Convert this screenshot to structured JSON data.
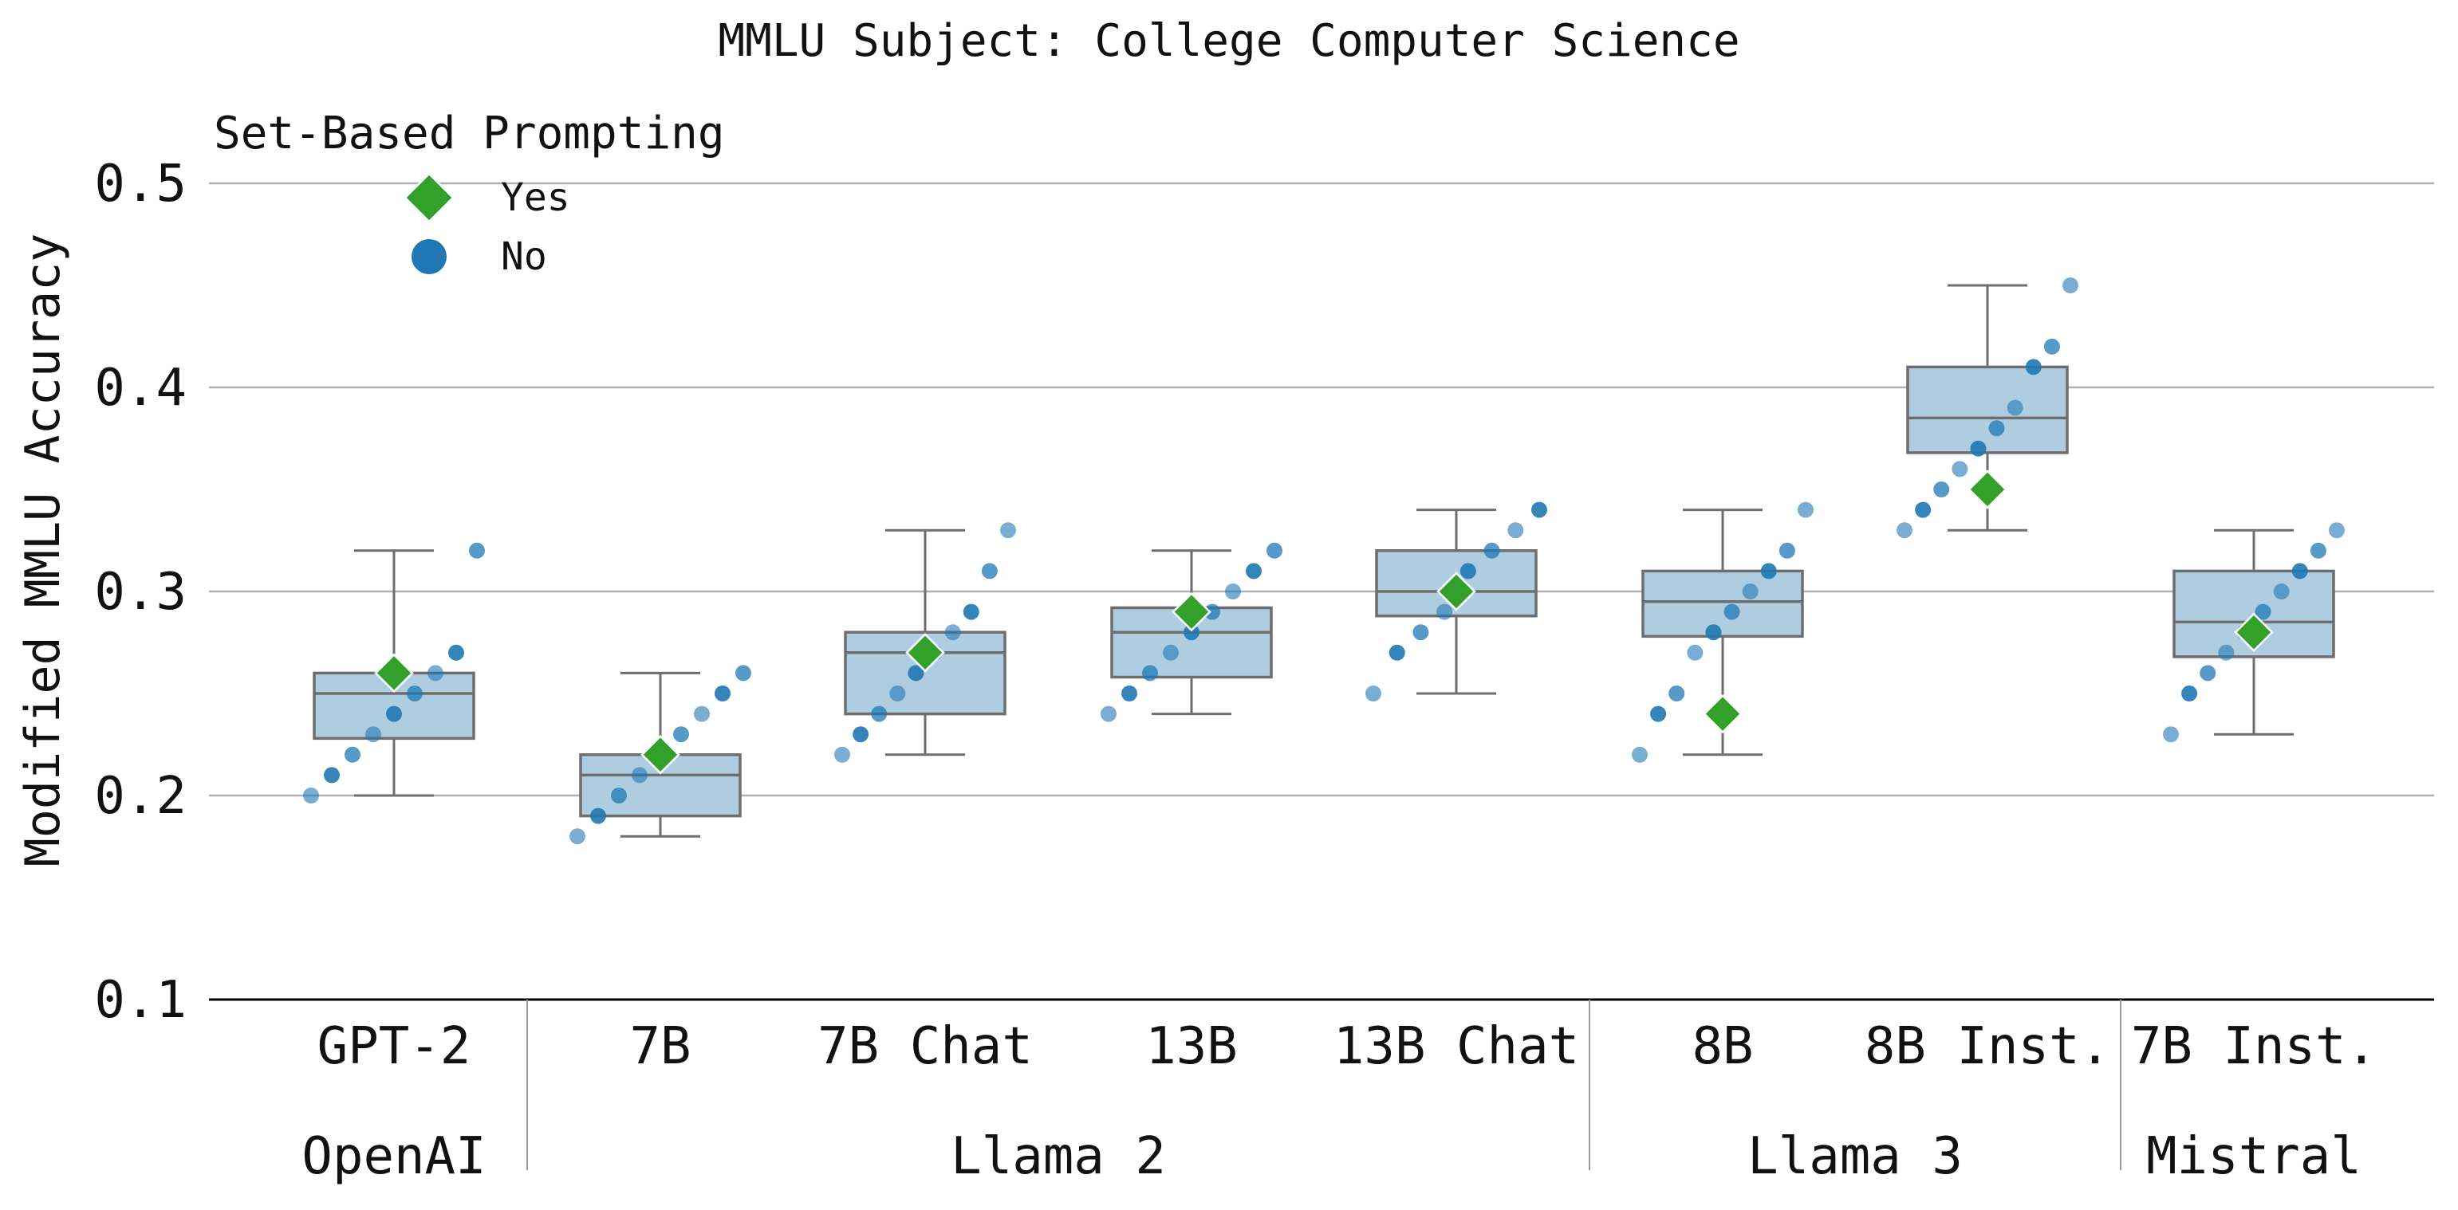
{
  "chart_data": {
    "type": "box",
    "title": "MMLU Subject: College Computer Science",
    "ylabel": "Modified MMLU Accuracy",
    "ylim": [
      0.1,
      0.5
    ],
    "yticks": [
      "0.1",
      "0.2",
      "0.3",
      "0.4",
      "0.5"
    ],
    "grid": true,
    "legend": {
      "title": "Set-Based Prompting",
      "placement": "top-left",
      "entries": [
        {
          "label": "Yes",
          "marker": "diamond",
          "color": "#33a02c"
        },
        {
          "label": "No",
          "marker": "circle",
          "color": "#1f78b4"
        }
      ]
    },
    "colors": {
      "box_fill": "#aecde1",
      "box_edge": "#6e6e6e",
      "grid": "#b0b0b0",
      "yes": "#33a02c",
      "no": "#1f78b4"
    },
    "groups": [
      {
        "name": "OpenAI",
        "categories": [
          "GPT-2"
        ]
      },
      {
        "name": "Llama 2",
        "categories": [
          "7B",
          "7B Chat",
          "13B",
          "13B Chat"
        ]
      },
      {
        "name": "Llama 3",
        "categories": [
          "8B",
          "8B Inst."
        ]
      },
      {
        "name": "Mistral",
        "categories": [
          "7B Inst."
        ]
      }
    ],
    "categories": [
      "GPT-2",
      "7B",
      "7B Chat",
      "13B",
      "13B Chat",
      "8B",
      "8B Inst.",
      "7B Inst."
    ],
    "boxes": [
      {
        "category": "GPT-2",
        "min": 0.2,
        "q1": 0.228,
        "median": 0.25,
        "q3": 0.26,
        "max": 0.32
      },
      {
        "category": "7B",
        "min": 0.18,
        "q1": 0.19,
        "median": 0.21,
        "q3": 0.22,
        "max": 0.26
      },
      {
        "category": "7B Chat",
        "min": 0.22,
        "q1": 0.24,
        "median": 0.27,
        "q3": 0.28,
        "max": 0.33
      },
      {
        "category": "13B",
        "min": 0.24,
        "q1": 0.258,
        "median": 0.28,
        "q3": 0.292,
        "max": 0.32
      },
      {
        "category": "13B Chat",
        "min": 0.25,
        "q1": 0.288,
        "median": 0.3,
        "q3": 0.32,
        "max": 0.34
      },
      {
        "category": "8B",
        "min": 0.22,
        "q1": 0.278,
        "median": 0.295,
        "q3": 0.31,
        "max": 0.34
      },
      {
        "category": "8B Inst.",
        "min": 0.33,
        "q1": 0.368,
        "median": 0.385,
        "q3": 0.41,
        "max": 0.45
      },
      {
        "category": "7B Inst.",
        "min": 0.23,
        "q1": 0.268,
        "median": 0.285,
        "q3": 0.31,
        "max": 0.33
      }
    ],
    "set_based_yes": [
      {
        "category": "GPT-2",
        "value": 0.26
      },
      {
        "category": "7B",
        "value": 0.22
      },
      {
        "category": "7B Chat",
        "value": 0.27
      },
      {
        "category": "13B",
        "value": 0.29
      },
      {
        "category": "13B Chat",
        "value": 0.3
      },
      {
        "category": "8B",
        "value": 0.24
      },
      {
        "category": "8B Inst.",
        "value": 0.35
      },
      {
        "category": "7B Inst.",
        "value": 0.28
      }
    ],
    "set_based_no": [
      {
        "category": "GPT-2",
        "values": [
          0.2,
          0.21,
          0.22,
          0.23,
          0.24,
          0.25,
          0.26,
          0.27,
          0.32
        ]
      },
      {
        "category": "7B",
        "values": [
          0.18,
          0.19,
          0.2,
          0.21,
          0.22,
          0.23,
          0.24,
          0.25,
          0.26
        ]
      },
      {
        "category": "7B Chat",
        "values": [
          0.22,
          0.23,
          0.24,
          0.25,
          0.26,
          0.27,
          0.28,
          0.29,
          0.31,
          0.33
        ]
      },
      {
        "category": "13B",
        "values": [
          0.24,
          0.25,
          0.26,
          0.27,
          0.28,
          0.29,
          0.3,
          0.31,
          0.32
        ]
      },
      {
        "category": "13B Chat",
        "values": [
          0.25,
          0.27,
          0.28,
          0.29,
          0.31,
          0.32,
          0.33,
          0.34
        ]
      },
      {
        "category": "8B",
        "values": [
          0.22,
          0.24,
          0.25,
          0.27,
          0.28,
          0.29,
          0.3,
          0.31,
          0.32,
          0.34
        ]
      },
      {
        "category": "8B Inst.",
        "values": [
          0.33,
          0.34,
          0.35,
          0.36,
          0.37,
          0.38,
          0.39,
          0.41,
          0.42,
          0.45
        ]
      },
      {
        "category": "7B Inst.",
        "values": [
          0.23,
          0.25,
          0.26,
          0.27,
          0.28,
          0.29,
          0.3,
          0.31,
          0.32,
          0.33
        ]
      }
    ]
  }
}
